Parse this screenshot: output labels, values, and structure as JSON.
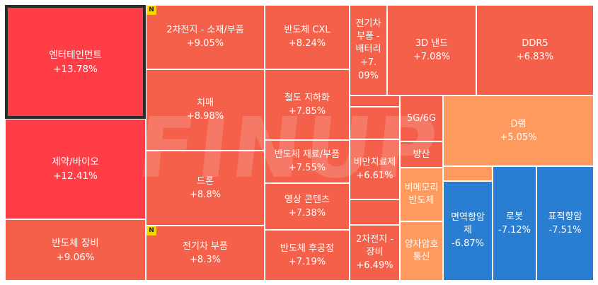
{
  "watermark": "FINUP",
  "badge_label": "N",
  "colors": {
    "up_strong": "#ff3d46",
    "up": "#f5604a",
    "up_light": "#ff9a5e",
    "down": "#2a7ed1"
  },
  "tiles": [
    {
      "name": "엔터테인먼트",
      "change": "+13.78%"
    },
    {
      "name": "제약/바이오",
      "change": "+12.41%"
    },
    {
      "name": "반도체 장비",
      "change": "+9.06%"
    },
    {
      "name": "2차전지 - 소재/부품",
      "change": "+9.05%"
    },
    {
      "name": "치매",
      "change": "+8.98%"
    },
    {
      "name": "드론",
      "change": "+8.8%"
    },
    {
      "name": "전기차 부품",
      "change": "+8.3%"
    },
    {
      "name": "반도체 CXL",
      "change": "+8.24%"
    },
    {
      "name": "철도 지하화",
      "change": "+7.85%"
    },
    {
      "name": "반도체 재료/부품",
      "change": "+7.55%"
    },
    {
      "name": "영상 콘텐츠",
      "change": "+7.38%"
    },
    {
      "name": "반도체 후공정",
      "change": "+7.19%"
    },
    {
      "name": "전기차 부품 - 배터리",
      "change": "+7.09%"
    },
    {
      "name": "비만치료제",
      "change": "+6.61%"
    },
    {
      "name": "2차전지 - 장비",
      "change": "+6.49%"
    },
    {
      "name": "3D 낸드",
      "change": "+7.08%"
    },
    {
      "name": "DDR5",
      "change": "+6.83%"
    },
    {
      "name": "5G/6G",
      "change": ""
    },
    {
      "name": "방산",
      "change": ""
    },
    {
      "name": "비메모리 반도체",
      "change": ""
    },
    {
      "name": "양자암호통신",
      "change": ""
    },
    {
      "name": "D램",
      "change": "+5.05%"
    },
    {
      "name": "면역항암제",
      "change": "-6.87%"
    },
    {
      "name": "로봇",
      "change": "-7.12%"
    },
    {
      "name": "표적항암",
      "change": "-7.51%"
    }
  ]
}
